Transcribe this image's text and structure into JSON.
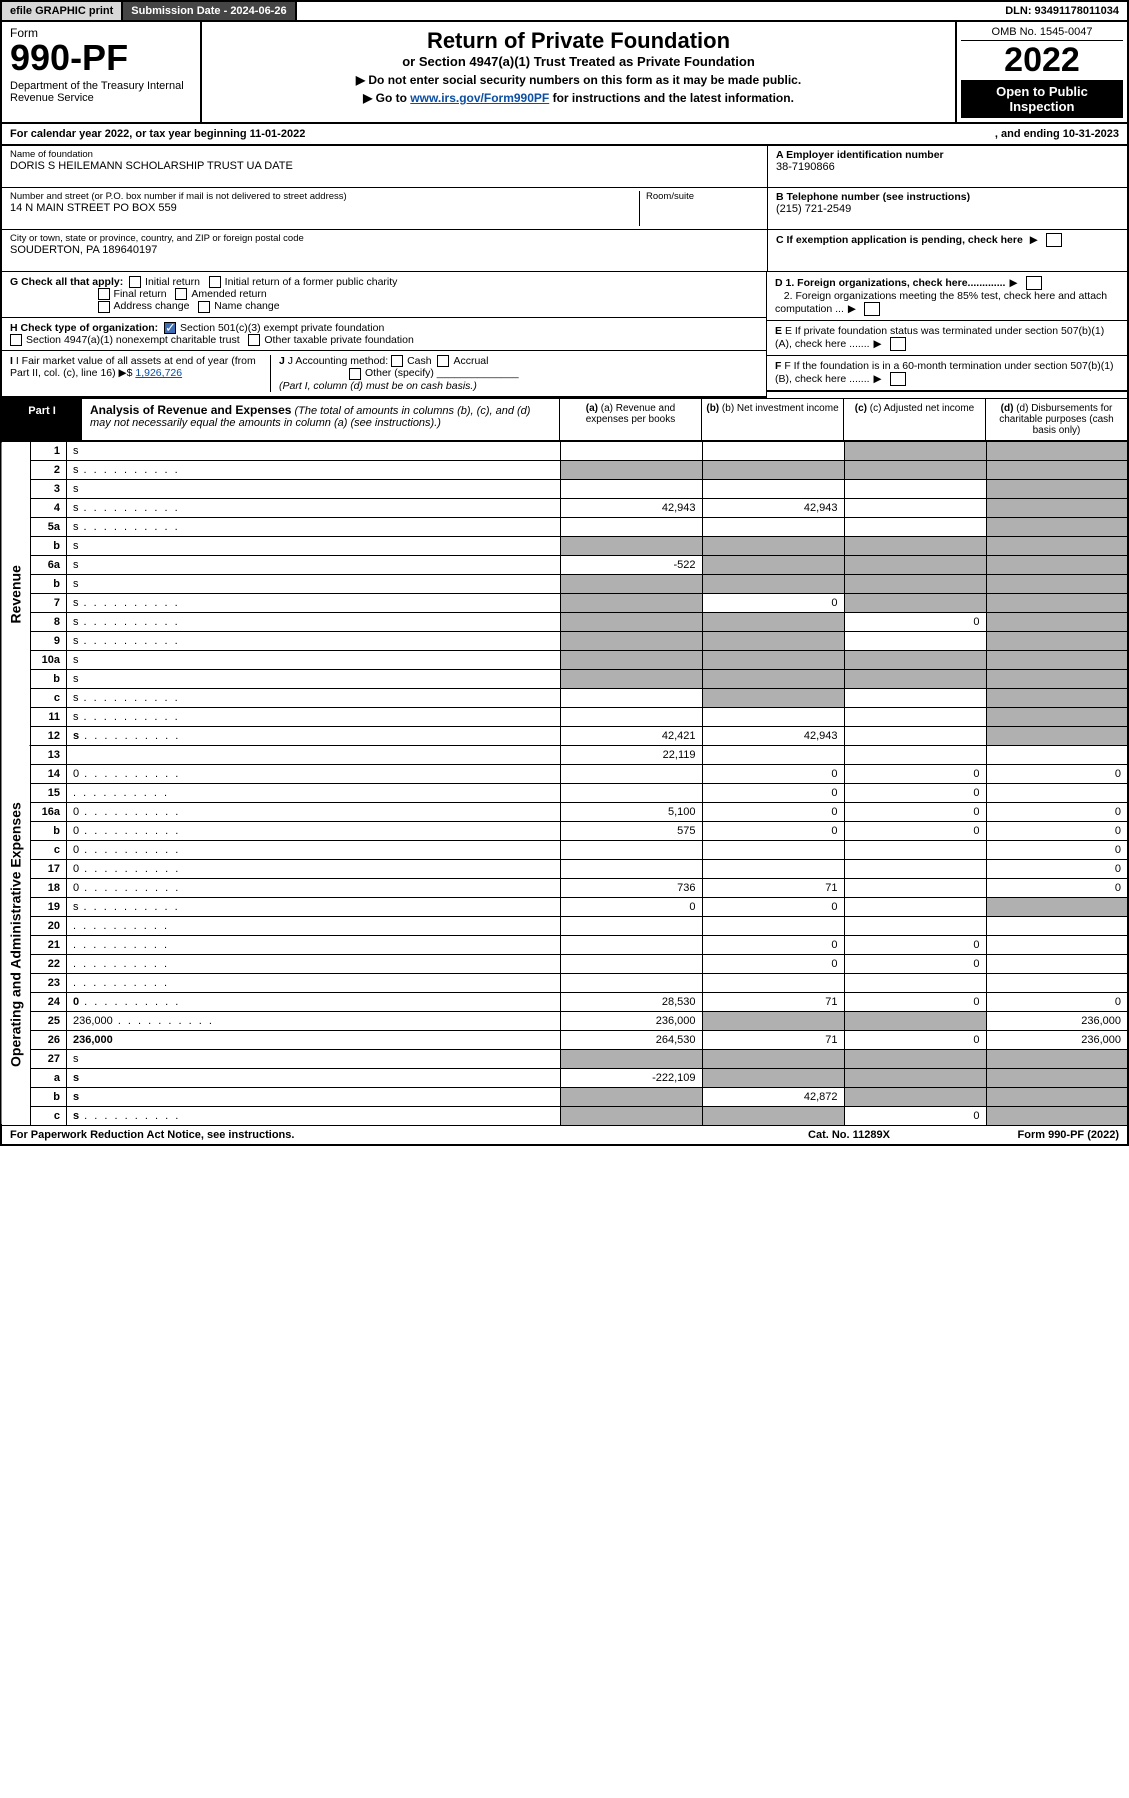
{
  "topbar": {
    "efile": "efile GRAPHIC print",
    "submission": "Submission Date - 2024-06-26",
    "dln": "DLN: 93491178011034"
  },
  "header": {
    "form_word": "Form",
    "form_number": "990-PF",
    "dept": "Department of the Treasury\nInternal Revenue Service",
    "title": "Return of Private Foundation",
    "subtitle": "or Section 4947(a)(1) Trust Treated as Private Foundation",
    "note1": "▶ Do not enter social security numbers on this form as it may be made public.",
    "note2_pre": "▶ Go to ",
    "note2_link": "www.irs.gov/Form990PF",
    "note2_post": " for instructions and the latest information.",
    "omb": "OMB No. 1545-0047",
    "year": "2022",
    "open": "Open to Public Inspection"
  },
  "cal": {
    "text_a": "For calendar year 2022, or tax year beginning 11-01-2022",
    "text_b": ", and ending 10-31-2023"
  },
  "info": {
    "name_label": "Name of foundation",
    "name": "DORIS S HEILEMANN SCHOLARSHIP TRUST UA DATE",
    "addr_label": "Number and street (or P.O. box number if mail is not delivered to street address)",
    "addr": "14 N MAIN STREET PO BOX 559",
    "room_label": "Room/suite",
    "city_label": "City or town, state or province, country, and ZIP or foreign postal code",
    "city": "SOUDERTON, PA  189640197",
    "a_label": "A Employer identification number",
    "ein": "38-7190866",
    "b_label": "B Telephone number (see instructions)",
    "phone": "(215) 721-2549",
    "c_label": "C If exemption application is pending, check here",
    "d1": "D 1. Foreign organizations, check here.............",
    "d2": "2. Foreign organizations meeting the 85% test, check here and attach computation ...",
    "e": "E  If private foundation status was terminated under section 507(b)(1)(A), check here .......",
    "f": "F  If the foundation is in a 60-month termination under section 507(b)(1)(B), check here .......",
    "g_label": "G Check all that apply:",
    "g_opts": [
      "Initial return",
      "Initial return of a former public charity",
      "Final return",
      "Amended return",
      "Address change",
      "Name change"
    ],
    "h_label": "H Check type of organization:",
    "h_opt1": "Section 501(c)(3) exempt private foundation",
    "h_opt2": "Section 4947(a)(1) nonexempt charitable trust",
    "h_opt3": "Other taxable private foundation",
    "i_label": "I Fair market value of all assets at end of year (from Part II, col. (c), line 16) ▶$ ",
    "i_val": "1,926,726",
    "j_label": "J Accounting method:",
    "j_cash": "Cash",
    "j_accrual": "Accrual",
    "j_other": "Other (specify)",
    "j_note": "(Part I, column (d) must be on cash basis.)"
  },
  "part1": {
    "tag": "Part I",
    "title": "Analysis of Revenue and Expenses",
    "title_note": " (The total of amounts in columns (b), (c), and (d) may not necessarily equal the amounts in column (a) (see instructions).)",
    "col_a": "(a)  Revenue and expenses per books",
    "col_b": "(b)  Net investment income",
    "col_c": "(c)  Adjusted net income",
    "col_d": "(d)  Disbursements for charitable purposes (cash basis only)"
  },
  "vlabels": {
    "rev": "Revenue",
    "opex": "Operating and Administrative Expenses"
  },
  "rows": [
    {
      "n": "1",
      "d": "s",
      "a": "",
      "b": "",
      "c": "s"
    },
    {
      "n": "2",
      "d": "s",
      "a": "s",
      "b": "s",
      "c": "s",
      "dots": true
    },
    {
      "n": "3",
      "d": "s",
      "a": "",
      "b": "",
      "c": ""
    },
    {
      "n": "4",
      "d": "s",
      "a": "42,943",
      "b": "42,943",
      "c": "",
      "dots": true
    },
    {
      "n": "5a",
      "d": "s",
      "a": "",
      "b": "",
      "c": "",
      "dots": true
    },
    {
      "n": "b",
      "d": "s",
      "a": "s",
      "b": "s",
      "c": "s"
    },
    {
      "n": "6a",
      "d": "s",
      "a": "-522",
      "b": "s",
      "c": "s"
    },
    {
      "n": "b",
      "d": "s",
      "a": "s",
      "b": "s",
      "c": "s"
    },
    {
      "n": "7",
      "d": "s",
      "a": "s",
      "b": "0",
      "c": "s",
      "dots": true
    },
    {
      "n": "8",
      "d": "s",
      "a": "s",
      "b": "s",
      "c": "0",
      "dots": true
    },
    {
      "n": "9",
      "d": "s",
      "a": "s",
      "b": "s",
      "c": "",
      "dots": true
    },
    {
      "n": "10a",
      "d": "s",
      "a": "s",
      "b": "s",
      "c": "s"
    },
    {
      "n": "b",
      "d": "s",
      "a": "s",
      "b": "s",
      "c": "s"
    },
    {
      "n": "c",
      "d": "s",
      "a": "",
      "b": "s",
      "c": "",
      "dots": true
    },
    {
      "n": "11",
      "d": "s",
      "a": "",
      "b": "",
      "c": "",
      "dots": true
    },
    {
      "n": "12",
      "d": "s",
      "a": "42,421",
      "b": "42,943",
      "c": "",
      "bold": true,
      "dots": true
    },
    {
      "n": "13",
      "d": "",
      "a": "22,119",
      "b": "",
      "c": ""
    },
    {
      "n": "14",
      "d": "0",
      "a": "",
      "b": "0",
      "c": "0",
      "dots": true
    },
    {
      "n": "15",
      "d": "",
      "a": "",
      "b": "0",
      "c": "0",
      "dots": true
    },
    {
      "n": "16a",
      "d": "0",
      "a": "5,100",
      "b": "0",
      "c": "0",
      "dots": true
    },
    {
      "n": "b",
      "d": "0",
      "a": "575",
      "b": "0",
      "c": "0",
      "dots": true
    },
    {
      "n": "c",
      "d": "0",
      "a": "",
      "b": "",
      "c": "",
      "dots": true
    },
    {
      "n": "17",
      "d": "0",
      "a": "",
      "b": "",
      "c": "",
      "dots": true
    },
    {
      "n": "18",
      "d": "0",
      "a": "736",
      "b": "71",
      "c": "",
      "dots": true
    },
    {
      "n": "19",
      "d": "s",
      "a": "0",
      "b": "0",
      "c": "",
      "dots": true
    },
    {
      "n": "20",
      "d": "",
      "a": "",
      "b": "",
      "c": "",
      "dots": true
    },
    {
      "n": "21",
      "d": "",
      "a": "",
      "b": "0",
      "c": "0",
      "dots": true
    },
    {
      "n": "22",
      "d": "",
      "a": "",
      "b": "0",
      "c": "0",
      "dots": true
    },
    {
      "n": "23",
      "d": "",
      "a": "",
      "b": "",
      "c": "",
      "dots": true
    },
    {
      "n": "24",
      "d": "0",
      "a": "28,530",
      "b": "71",
      "c": "0",
      "bold": true,
      "dots": true
    },
    {
      "n": "25",
      "d": "236,000",
      "a": "236,000",
      "b": "s",
      "c": "s",
      "dots": true
    },
    {
      "n": "26",
      "d": "236,000",
      "a": "264,530",
      "b": "71",
      "c": "0",
      "bold": true
    },
    {
      "n": "27",
      "d": "s",
      "a": "s",
      "b": "s",
      "c": "s"
    },
    {
      "n": "a",
      "d": "s",
      "a": "-222,109",
      "b": "s",
      "c": "s",
      "bold": true
    },
    {
      "n": "b",
      "d": "s",
      "a": "s",
      "b": "42,872",
      "c": "s",
      "bold": true
    },
    {
      "n": "c",
      "d": "s",
      "a": "s",
      "b": "s",
      "c": "0",
      "bold": true,
      "dots": true
    }
  ],
  "footer": {
    "left": "For Paperwork Reduction Act Notice, see instructions.",
    "mid": "Cat. No. 11289X",
    "right": "Form 990-PF (2022)"
  },
  "colors": {
    "shade": "#b0b0b0",
    "link": "#0b4ea2",
    "check_on": "#3f6db3"
  }
}
